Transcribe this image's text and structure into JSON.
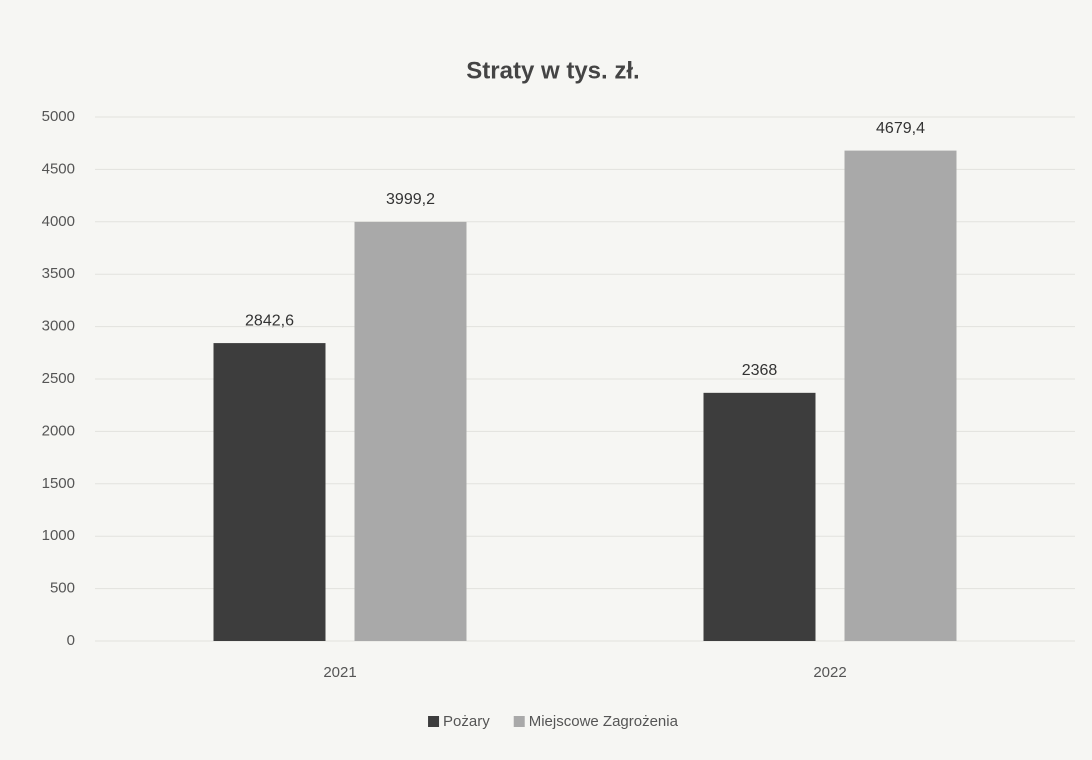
{
  "chart_data": {
    "type": "bar",
    "title": "Straty w tys. zł.",
    "categories": [
      "2021",
      "2022"
    ],
    "series": [
      {
        "name": "Pożary",
        "color": "#3d3d3d",
        "values": [
          2842.6,
          2368
        ],
        "value_labels": [
          "2842,6",
          "2368"
        ]
      },
      {
        "name": "Miejscowe Zagrożenia",
        "color": "#a9a9a9",
        "values": [
          3999.2,
          4679.4
        ],
        "value_labels": [
          "3999,2",
          "4679,4"
        ]
      }
    ],
    "ylim": [
      0,
      5000
    ],
    "yticks": [
      0,
      500,
      1000,
      1500,
      2000,
      2500,
      3000,
      3500,
      4000,
      4500,
      5000
    ],
    "grid": true,
    "legend": "bottom"
  }
}
